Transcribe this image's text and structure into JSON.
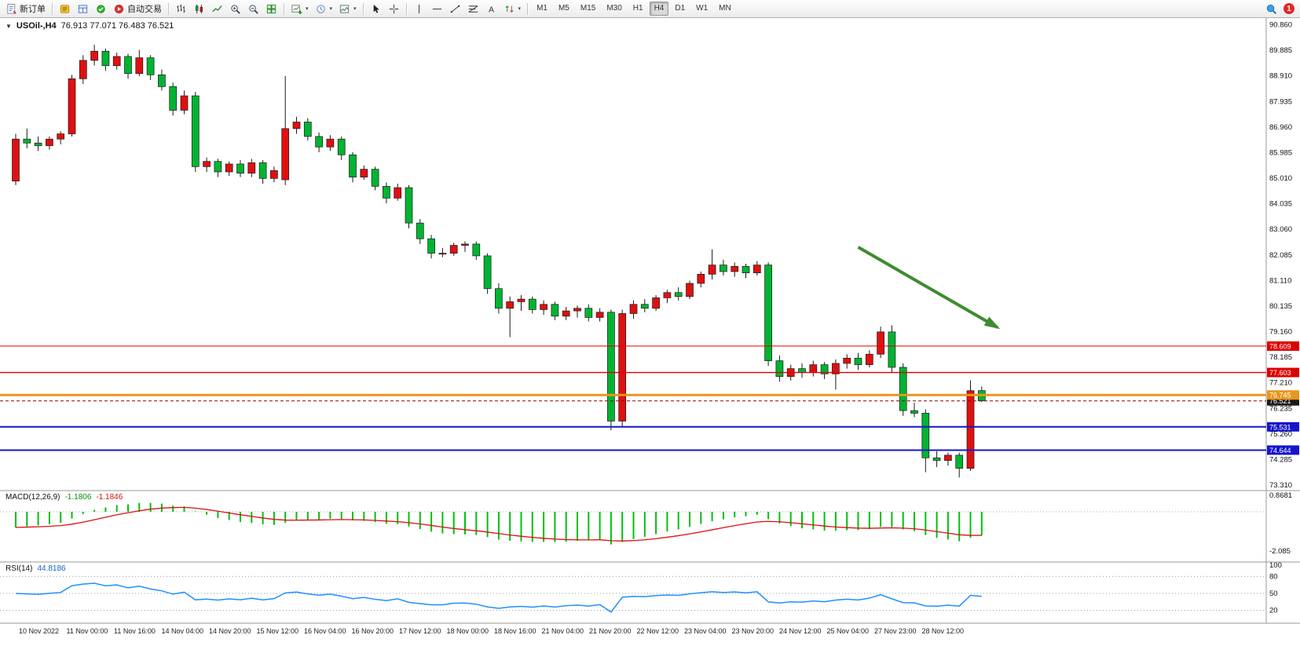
{
  "window": {
    "symbol_period": "USOil-,H4",
    "ohlc": "76.913 77.071 76.483 76.521"
  },
  "toolbar": {
    "new_order_label": "新订单",
    "auto_trading_label": "自动交易",
    "timeframes": [
      "M1",
      "M5",
      "M15",
      "M30",
      "H1",
      "H4",
      "D1",
      "W1",
      "MN"
    ],
    "active_timeframe": "H4",
    "notification_badge": "1",
    "icon_names": [
      "new-order-icon",
      "metaeditor-icon",
      "terminal-icon",
      "strategy-tester-icon",
      "auto-trading-icon",
      "bar-chart-icon",
      "candlestick-icon",
      "line-chart-icon",
      "zoom-in-icon",
      "zoom-out-icon",
      "tile-windows-icon",
      "new-chart-icon",
      "periods-clock-icon",
      "templates-icon",
      "cursor-icon",
      "crosshair-icon",
      "vertical-line-icon",
      "horizontal-line-icon",
      "trendline-icon",
      "fibonacci-icon",
      "text-icon",
      "arrows-icon",
      "search-icon"
    ]
  },
  "icons": {
    "one_click_glyph": "▼",
    "caret_glyph": "▾"
  },
  "macd_panel": {
    "label": "MACD(12,26,9)",
    "value_main": "-1.1806",
    "value_signal": "-1.1846",
    "axis_labels": [
      "0.8681",
      "-2.085"
    ]
  },
  "rsi_panel": {
    "label": "RSI(14)",
    "value": "44.8186",
    "axis_labels": [
      "100",
      "80",
      "50",
      "20"
    ],
    "levels": [
      80,
      50,
      20
    ]
  },
  "colors": {
    "up": "#e01010",
    "down": "#00b432",
    "wick": "#1a1a1a",
    "macd_hist": "#00c010",
    "macd_signal": "#e01010",
    "rsi_line": "#1e90ff",
    "line_red": "#dd0000",
    "line_blue": "#1515cc",
    "line_orange": "#e8961e",
    "current_tag": "#1a1a1a",
    "arrow": "#3f8b2f",
    "axis_text": "#111111",
    "separator": "#9a9a9a"
  },
  "chart_data": {
    "type": "candlestick",
    "title": "USOil-,H4",
    "symbol": "USOil-",
    "timeframe": "H4",
    "price_axis": {
      "ticks": [
        {
          "label": "90.860",
          "price": 90.86
        },
        {
          "label": "89.885",
          "price": 89.885
        },
        {
          "label": "88.910",
          "price": 88.91
        },
        {
          "label": "87.935",
          "price": 87.935
        },
        {
          "label": "86.960",
          "price": 86.96
        },
        {
          "label": "85.985",
          "price": 85.985
        },
        {
          "label": "85.010",
          "price": 85.01
        },
        {
          "label": "84.035",
          "price": 84.035
        },
        {
          "label": "83.060",
          "price": 83.06
        },
        {
          "label": "82.085",
          "price": 82.085
        },
        {
          "label": "81.110",
          "price": 81.11
        },
        {
          "label": "80.135",
          "price": 80.135
        },
        {
          "label": "79.160",
          "price": 79.16
        },
        {
          "label": "78.185",
          "price": 78.185
        },
        {
          "label": "77.210",
          "price": 77.21
        },
        {
          "label": "76.235",
          "price": 76.235
        },
        {
          "label": "75.260",
          "price": 75.26
        },
        {
          "label": "74.285",
          "price": 74.285
        },
        {
          "label": "73.310",
          "price": 73.31
        }
      ]
    },
    "h_lines": [
      {
        "price": 78.609,
        "label": "78.609",
        "color": "#dd0000",
        "width": 1
      },
      {
        "price": 77.603,
        "label": "77.603",
        "color": "#dd0000",
        "width": 1.4
      },
      {
        "price": 76.745,
        "label": "76.745",
        "color": "#e8961e",
        "width": 3
      },
      {
        "price": 75.531,
        "label": "75.531",
        "color": "#1515cc",
        "width": 2
      },
      {
        "price": 74.644,
        "label": "74.644",
        "color": "#1515cc",
        "width": 2
      }
    ],
    "current_price": {
      "label": "76.521",
      "price": 76.521
    },
    "arrow": {
      "from_index": 75,
      "from_price": 82.38,
      "to_index": 87.4,
      "to_price": 79.32
    },
    "time_labels": [
      "10 Nov 2022",
      "11 Nov 00:00",
      "11 Nov 16:00",
      "14 Nov 04:00",
      "14 Nov 20:00",
      "15 Nov 12:00",
      "16 Nov 04:00",
      "16 Nov 20:00",
      "17 Nov 12:00",
      "18 Nov 00:00",
      "18 Nov 16:00",
      "21 Nov 04:00",
      "21 Nov 20:00",
      "22 Nov 12:00",
      "23 Nov 04:00",
      "23 Nov 20:00",
      "24 Nov 12:00",
      "25 Nov 04:00",
      "27 Nov 23:00",
      "28 Nov 12:00"
    ],
    "candles": [
      [
        84.9,
        86.7,
        84.75,
        86.5
      ],
      [
        86.5,
        86.9,
        86.15,
        86.35
      ],
      [
        86.35,
        86.6,
        86.05,
        86.25
      ],
      [
        86.25,
        86.6,
        86.1,
        86.5
      ],
      [
        86.5,
        86.8,
        86.3,
        86.7
      ],
      [
        86.7,
        88.95,
        86.6,
        88.8
      ],
      [
        88.8,
        89.7,
        88.6,
        89.5
      ],
      [
        89.5,
        90.1,
        89.3,
        89.85
      ],
      [
        89.85,
        89.95,
        89.1,
        89.3
      ],
      [
        89.3,
        89.8,
        89.15,
        89.65
      ],
      [
        89.65,
        89.75,
        88.8,
        89.0
      ],
      [
        89.0,
        89.9,
        88.9,
        89.6
      ],
      [
        89.6,
        89.7,
        88.75,
        88.95
      ],
      [
        88.95,
        89.15,
        88.35,
        88.5
      ],
      [
        88.5,
        88.65,
        87.4,
        87.6
      ],
      [
        87.6,
        88.35,
        87.45,
        88.15
      ],
      [
        88.15,
        88.3,
        85.25,
        85.45
      ],
      [
        85.45,
        85.8,
        85.25,
        85.65
      ],
      [
        85.65,
        85.75,
        85.05,
        85.25
      ],
      [
        85.25,
        85.65,
        85.1,
        85.55
      ],
      [
        85.55,
        85.7,
        85.05,
        85.2
      ],
      [
        85.2,
        85.75,
        85.05,
        85.6
      ],
      [
        85.6,
        85.7,
        84.8,
        85.0
      ],
      [
        85.0,
        85.45,
        84.85,
        85.3
      ],
      [
        84.95,
        88.9,
        84.75,
        86.9
      ],
      [
        86.9,
        87.35,
        86.7,
        87.15
      ],
      [
        87.15,
        87.3,
        86.45,
        86.6
      ],
      [
        86.6,
        86.75,
        86.0,
        86.2
      ],
      [
        86.2,
        86.65,
        86.05,
        86.5
      ],
      [
        86.5,
        86.6,
        85.7,
        85.9
      ],
      [
        85.9,
        86.0,
        84.85,
        85.05
      ],
      [
        85.05,
        85.5,
        84.95,
        85.35
      ],
      [
        85.35,
        85.45,
        84.55,
        84.7
      ],
      [
        84.7,
        84.85,
        84.05,
        84.25
      ],
      [
        84.25,
        84.8,
        84.15,
        84.65
      ],
      [
        84.65,
        84.75,
        83.1,
        83.3
      ],
      [
        83.3,
        83.45,
        82.5,
        82.7
      ],
      [
        82.7,
        82.85,
        81.95,
        82.15
      ],
      [
        82.15,
        82.35,
        82.0,
        82.15
      ],
      [
        82.15,
        82.55,
        82.05,
        82.45
      ],
      [
        82.45,
        82.6,
        82.2,
        82.5
      ],
      [
        82.5,
        82.6,
        81.9,
        82.05
      ],
      [
        82.05,
        82.15,
        80.6,
        80.8
      ],
      [
        80.8,
        81.0,
        79.85,
        80.05
      ],
      [
        80.05,
        80.5,
        78.95,
        80.3
      ],
      [
        80.3,
        80.55,
        79.95,
        80.4
      ],
      [
        80.4,
        80.5,
        79.85,
        80.0
      ],
      [
        80.0,
        80.35,
        79.8,
        80.2
      ],
      [
        80.2,
        80.3,
        79.6,
        79.75
      ],
      [
        79.75,
        80.1,
        79.6,
        79.95
      ],
      [
        79.95,
        80.15,
        79.7,
        80.05
      ],
      [
        80.05,
        80.2,
        79.55,
        79.7
      ],
      [
        79.7,
        80.05,
        79.55,
        79.9
      ],
      [
        79.9,
        80.0,
        75.4,
        75.75
      ],
      [
        75.75,
        80.0,
        75.55,
        79.85
      ],
      [
        79.85,
        80.35,
        79.65,
        80.2
      ],
      [
        80.2,
        80.4,
        79.9,
        80.05
      ],
      [
        80.05,
        80.55,
        79.95,
        80.45
      ],
      [
        80.45,
        80.75,
        80.25,
        80.65
      ],
      [
        80.65,
        80.85,
        80.35,
        80.5
      ],
      [
        80.5,
        81.1,
        80.4,
        81.0
      ],
      [
        81.0,
        81.45,
        80.85,
        81.35
      ],
      [
        81.35,
        82.3,
        81.15,
        81.7
      ],
      [
        81.7,
        81.9,
        81.3,
        81.45
      ],
      [
        81.45,
        81.8,
        81.25,
        81.65
      ],
      [
        81.65,
        81.75,
        81.2,
        81.4
      ],
      [
        81.4,
        81.85,
        81.3,
        81.7
      ],
      [
        81.7,
        81.8,
        77.85,
        78.05
      ],
      [
        78.05,
        78.25,
        77.25,
        77.45
      ],
      [
        77.45,
        77.9,
        77.3,
        77.75
      ],
      [
        77.75,
        77.95,
        77.4,
        77.6
      ],
      [
        77.6,
        78.05,
        77.45,
        77.9
      ],
      [
        77.9,
        78.0,
        77.35,
        77.55
      ],
      [
        77.55,
        78.1,
        76.95,
        77.95
      ],
      [
        77.95,
        78.3,
        77.75,
        78.15
      ],
      [
        78.15,
        78.35,
        77.7,
        77.9
      ],
      [
        77.9,
        78.45,
        77.8,
        78.3
      ],
      [
        78.3,
        79.35,
        78.15,
        79.15
      ],
      [
        79.15,
        79.4,
        77.6,
        77.8
      ],
      [
        77.8,
        77.95,
        75.95,
        76.15
      ],
      [
        76.15,
        76.45,
        75.9,
        76.05
      ],
      [
        76.05,
        76.2,
        73.8,
        74.35
      ],
      [
        74.35,
        74.6,
        74.0,
        74.25
      ],
      [
        74.25,
        74.55,
        74.05,
        74.45
      ],
      [
        74.45,
        74.55,
        73.6,
        73.95
      ],
      [
        73.95,
        77.3,
        73.85,
        76.91
      ],
      [
        76.913,
        77.071,
        76.483,
        76.521
      ]
    ],
    "indicators": {
      "macd": {
        "fast": 12,
        "slow": 26,
        "signal": 9,
        "last": -1.1806,
        "last_signal": -1.1846
      },
      "rsi": {
        "period": 14,
        "last": 44.8186,
        "levels": [
          80,
          50,
          20
        ]
      }
    }
  }
}
